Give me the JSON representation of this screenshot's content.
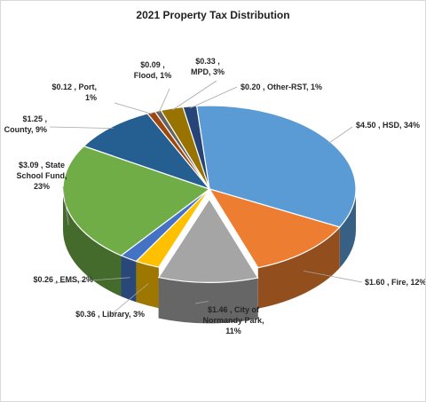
{
  "chart_data": {
    "type": "pie",
    "title": "2021 Property Tax Distribution",
    "legend": "none",
    "slices": [
      {
        "category": "HSD",
        "value": 4.5,
        "percent": 34,
        "color": "#5b9bd5",
        "label_lines": [
          "$4.50 , HSD, 34%"
        ]
      },
      {
        "category": "Fire",
        "value": 1.6,
        "percent": 12,
        "color": "#ed7d31",
        "label_lines": [
          "$1.60 , Fire, 12%"
        ]
      },
      {
        "category": "City of Normandy Park",
        "value": 1.46,
        "percent": 11,
        "color": "#a5a5a5",
        "label_lines": [
          "$1.46 , City of",
          "Normandy Park,",
          "11%"
        ]
      },
      {
        "category": "Library",
        "value": 0.36,
        "percent": 3,
        "color": "#ffc000",
        "label_lines": [
          "$0.36 , Library, 3%"
        ]
      },
      {
        "category": "EMS",
        "value": 0.26,
        "percent": 2,
        "color": "#4472c4",
        "label_lines": [
          "$0.26 , EMS, 2%"
        ]
      },
      {
        "category": "State School Fund",
        "value": 3.09,
        "percent": 23,
        "color": "#70ad47",
        "label_lines": [
          "$3.09 , State",
          "School Fund,",
          "23%"
        ]
      },
      {
        "category": "County",
        "value": 1.25,
        "percent": 9,
        "color": "#255e91",
        "label_lines": [
          "$1.25 ,",
          "County, 9%"
        ]
      },
      {
        "category": "Port",
        "value": 0.12,
        "percent": 1,
        "color": "#9e480e",
        "label_lines": [
          "$0.12 , Port,",
          "1%"
        ]
      },
      {
        "category": "Flood",
        "value": 0.09,
        "percent": 1,
        "color": "#636363",
        "label_lines": [
          "$0.09 ,",
          "Flood, 1%"
        ]
      },
      {
        "category": "MPD",
        "value": 0.33,
        "percent": 3,
        "color": "#997300",
        "label_lines": [
          "$0.33 ,",
          "MPD, 3%"
        ]
      },
      {
        "category": "Other-RST",
        "value": 0.2,
        "percent": 1,
        "color": "#264478",
        "label_lines": [
          "$0.20 , Other-RST, 1%"
        ]
      }
    ]
  }
}
